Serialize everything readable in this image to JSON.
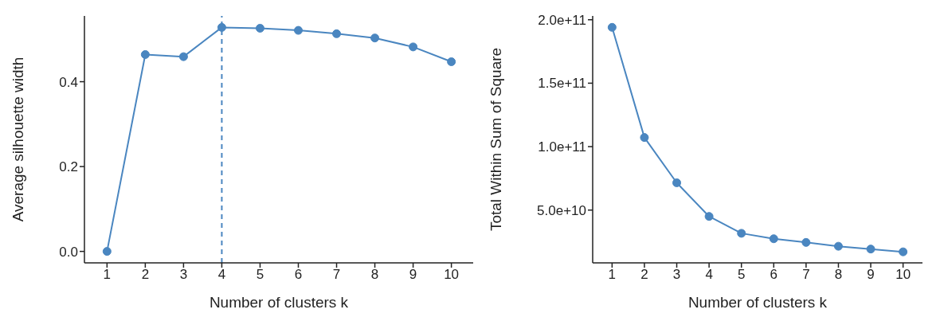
{
  "chart_data": [
    {
      "type": "line",
      "xlabel": "Number of clusters k",
      "ylabel": "Average silhouette width",
      "x": [
        1,
        2,
        3,
        4,
        5,
        6,
        7,
        8,
        9,
        10
      ],
      "series": [
        {
          "color": "#4a86c0",
          "values": [
            0,
            0.464,
            0.459,
            0.528,
            0.526,
            0.521,
            0.513,
            0.503,
            0.482,
            0.447
          ]
        }
      ],
      "xlim": [
        0.41,
        10.57
      ],
      "xticks": [
        1,
        2,
        3,
        4,
        5,
        6,
        7,
        8,
        9,
        10
      ],
      "ylim": [
        -0.027,
        0.555
      ],
      "yticks": [
        {
          "value": 0,
          "label": "0.0"
        },
        {
          "value": 0.2,
          "label": "0.2"
        },
        {
          "value": 0.4,
          "label": "0.4"
        }
      ],
      "ref_lines": [
        {
          "axis": "x",
          "value": 4,
          "color": "#4a86c0",
          "line_style": "dashed"
        }
      ],
      "marker": "circle",
      "line_style": "solid",
      "grid": false,
      "legend": false
    },
    {
      "type": "line",
      "xlabel": "Number of clusters k",
      "ylabel": "Total Within Sum of Square",
      "x": [
        1,
        2,
        3,
        4,
        5,
        6,
        7,
        8,
        9,
        10
      ],
      "series": [
        {
          "color": "#4a86c0",
          "values": [
            194000000000,
            107200000000,
            71500000000,
            45000000000,
            31700000000,
            27400000000,
            24500000000,
            21500000000,
            19300000000,
            17100000000
          ]
        }
      ],
      "xlim": [
        0.4,
        10.6
      ],
      "xticks": [
        1,
        2,
        3,
        4,
        5,
        6,
        7,
        8,
        9,
        10
      ],
      "ylim": [
        8400000000,
        203000000000
      ],
      "yticks": [
        {
          "value": 50000000000,
          "label": "5.0e+10"
        },
        {
          "value": 100000000000,
          "label": "1.0e+11"
        },
        {
          "value": 150000000000,
          "label": "1.5e+11"
        },
        {
          "value": 200000000000,
          "label": "2.0e+11"
        }
      ],
      "marker": "circle",
      "line_style": "solid",
      "grid": false,
      "legend": false
    }
  ]
}
